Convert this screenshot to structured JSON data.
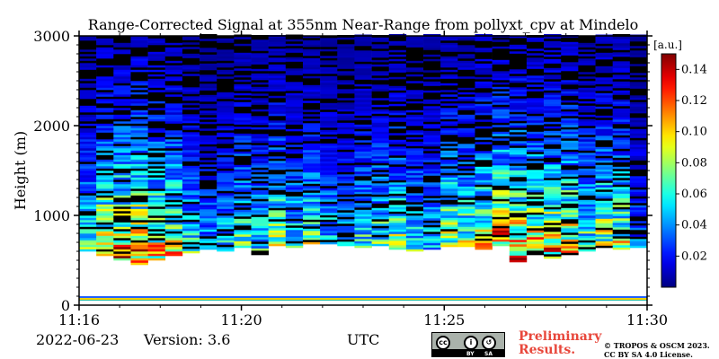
{
  "chart_data": {
    "type": "heatmap",
    "title": "Range-Corrected Signal at 355nm Near-Range from pollyxt_cpv at Mindelo",
    "xlabel": "UTC",
    "ylabel": "Height (m)",
    "xlim": [
      "11:16",
      "11:30"
    ],
    "ylim": [
      0,
      3000
    ],
    "xticks": [
      {
        "label": "11:16",
        "min": 0
      },
      {
        "label": "11:20",
        "min": 4
      },
      {
        "label": "11:25",
        "min": 9
      },
      {
        "label": "11:30",
        "min": 14
      }
    ],
    "yticks": [
      0,
      1000,
      2000,
      3000
    ],
    "colorbar": {
      "label": "[a.u.]",
      "range": [
        0.0,
        0.15
      ],
      "ticks": [
        "0.02",
        "0.04",
        "0.06",
        "0.08",
        "0.10",
        "0.12",
        "0.14"
      ],
      "tick_values": [
        0.02,
        0.04,
        0.06,
        0.08,
        0.1,
        0.12,
        0.14
      ],
      "colormap": "jet"
    },
    "profiles": [
      {
        "mbase": 600,
        "high": 0.07
      },
      {
        "mbase": 550,
        "high": 0.12
      },
      {
        "mbase": 500,
        "high": 0.13
      },
      {
        "mbase": 450,
        "high": 0.135
      },
      {
        "mbase": 500,
        "high": 0.12
      },
      {
        "mbase": 550,
        "high": 0.11
      },
      {
        "mbase": 580,
        "high": 0.07
      },
      {
        "mbase": 620,
        "high": 0.05
      },
      {
        "mbase": 600,
        "high": 0.06
      },
      {
        "mbase": 640,
        "high": 0.08
      },
      {
        "mbase": 560,
        "high": 0.07
      },
      {
        "mbase": 660,
        "high": 0.09
      },
      {
        "mbase": 640,
        "high": 0.07
      },
      {
        "mbase": 680,
        "high": 0.08
      },
      {
        "mbase": 680,
        "high": 0.06
      },
      {
        "mbase": 660,
        "high": 0.05
      },
      {
        "mbase": 640,
        "high": 0.07
      },
      {
        "mbase": 660,
        "high": 0.08
      },
      {
        "mbase": 620,
        "high": 0.09
      },
      {
        "mbase": 600,
        "high": 0.07
      },
      {
        "mbase": 620,
        "high": 0.06
      },
      {
        "mbase": 650,
        "high": 0.1
      },
      {
        "mbase": 650,
        "high": 0.09
      },
      {
        "mbase": 620,
        "high": 0.11
      },
      {
        "mbase": 660,
        "high": 0.13
      },
      {
        "mbase": 480,
        "high": 0.13
      },
      {
        "mbase": 560,
        "high": 0.12
      },
      {
        "mbase": 520,
        "high": 0.12
      },
      {
        "mbase": 560,
        "high": 0.12
      },
      {
        "mbase": 600,
        "high": 0.08
      },
      {
        "mbase": 640,
        "high": 0.1
      },
      {
        "mbase": 620,
        "high": 0.1
      },
      {
        "mbase": 640,
        "high": 0.04
      }
    ]
  },
  "footer": {
    "date": "2022-06-23",
    "version": "Version: 3.6",
    "utc": "UTC",
    "preliminary_line1": "Preliminary",
    "preliminary_line2": "Results.",
    "copyright_line1": "© TROPOS & OSCM 2023.",
    "copyright_line2": "CC BY SA 4.0 License.",
    "cc_by": "BY",
    "cc_sa": "SA"
  },
  "colors": {
    "preliminary": "#e8473b",
    "background": "#ffffff"
  }
}
